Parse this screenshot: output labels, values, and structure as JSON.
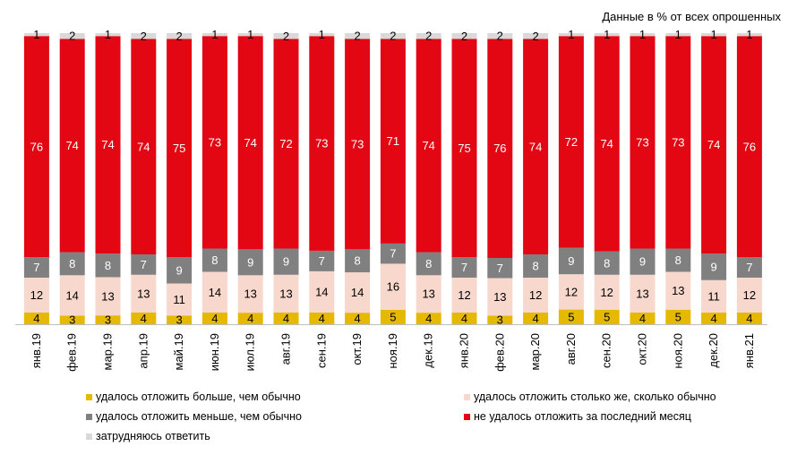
{
  "note": "Данные в % от всех опрошенных",
  "chart_data": {
    "type": "bar",
    "stacked": true,
    "unit": "%",
    "categories": [
      "янв.19",
      "фев.19",
      "мар.19",
      "апр.19",
      "май.19",
      "июн.19",
      "июл.19",
      "авг.19",
      "сен.19",
      "окт.19",
      "ноя.19",
      "дек.19",
      "янв.20",
      "фев.20",
      "мар.20",
      "авг.20",
      "сен.20",
      "окт.20",
      "ноя.20",
      "дек.20",
      "янв.21"
    ],
    "series": [
      {
        "name": "удалось отложить больше, чем обычно",
        "color": "#e6b800",
        "values": [
          4,
          3,
          3,
          4,
          3,
          4,
          4,
          4,
          4,
          4,
          5,
          4,
          4,
          3,
          4,
          5,
          5,
          4,
          5,
          4,
          4
        ]
      },
      {
        "name": "удалось отложить столько же, сколько обычно",
        "color": "#f8d8cc",
        "values": [
          12,
          14,
          13,
          13,
          11,
          14,
          13,
          13,
          14,
          14,
          16,
          13,
          12,
          13,
          12,
          12,
          12,
          13,
          13,
          11,
          12
        ]
      },
      {
        "name": "удалось отложить меньше, чем обычно",
        "color": "#808080",
        "values": [
          7,
          8,
          8,
          7,
          9,
          8,
          9,
          9,
          7,
          8,
          7,
          8,
          7,
          7,
          8,
          9,
          8,
          9,
          8,
          9,
          7
        ]
      },
      {
        "name": "не удалось отложить за последний месяц",
        "color": "#e30613",
        "values": [
          76,
          74,
          74,
          74,
          75,
          73,
          74,
          72,
          73,
          73,
          71,
          74,
          75,
          76,
          74,
          72,
          74,
          73,
          73,
          74,
          76
        ]
      },
      {
        "name": "затрудняюсь ответить",
        "color": "#d9d9d9",
        "values": [
          1,
          2,
          1,
          2,
          2,
          1,
          1,
          2,
          1,
          2,
          2,
          2,
          2,
          2,
          2,
          1,
          1,
          1,
          1,
          1,
          1
        ]
      }
    ],
    "legend_position": "bottom",
    "grid": false
  }
}
